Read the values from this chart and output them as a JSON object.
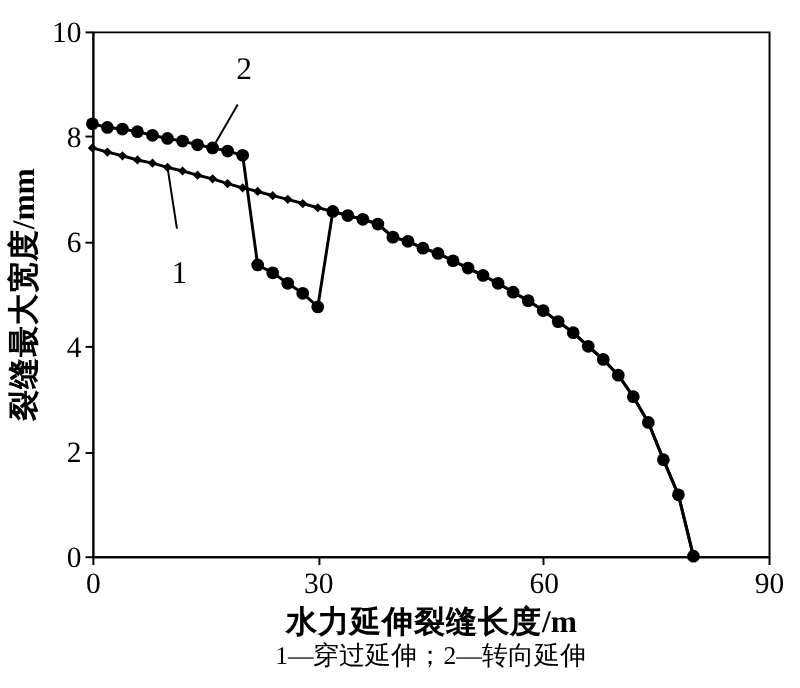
{
  "chart_data": {
    "type": "line",
    "xlabel": "水力延伸裂缝长度/m",
    "ylabel": "裂缝最大宽度/mm",
    "xlim": [
      0,
      90
    ],
    "xticks": [
      0,
      30,
      60,
      90
    ],
    "ylim": [
      0,
      10
    ],
    "yticks": [
      0,
      2,
      4,
      6,
      8,
      10
    ],
    "grid": false,
    "line_style": "solid",
    "series": [
      {
        "color": "#000000",
        "marker": "diamond",
        "x": [
          0,
          2,
          4,
          6,
          8,
          10,
          12,
          14,
          16,
          18,
          20,
          22,
          24,
          26,
          28,
          30,
          32,
          34,
          36,
          38,
          40,
          42,
          44,
          46,
          48,
          50,
          52,
          54,
          56,
          58,
          60,
          62,
          64,
          66,
          68,
          70,
          72,
          74,
          76,
          78,
          80
        ],
        "values": [
          7.78,
          7.7,
          7.63,
          7.55,
          7.49,
          7.41,
          7.34,
          7.26,
          7.19,
          7.1,
          7.02,
          6.95,
          6.87,
          6.8,
          6.72,
          6.64,
          6.57,
          6.49,
          6.42,
          6.33,
          6.08,
          6.0,
          5.87,
          5.77,
          5.63,
          5.49,
          5.35,
          5.2,
          5.03,
          4.87,
          4.68,
          4.47,
          4.26,
          4.0,
          3.75,
          3.45,
          3.04,
          2.55,
          1.84,
          1.17,
          0
        ]
      },
      {
        "color": "#000000",
        "marker": "circle",
        "x": [
          0,
          2,
          4,
          6,
          8,
          10,
          12,
          14,
          16,
          18,
          20,
          22,
          24,
          26,
          28,
          30,
          32,
          34,
          36,
          38,
          40,
          42,
          44,
          46,
          48,
          50,
          52,
          54,
          56,
          58,
          60,
          62,
          64,
          66,
          68,
          70,
          72,
          74,
          76,
          78,
          80
        ],
        "values": [
          8.24,
          8.17,
          8.14,
          8.09,
          8.02,
          7.96,
          7.91,
          7.84,
          7.78,
          7.72,
          7.64,
          5.55,
          5.4,
          5.2,
          5.01,
          4.75,
          6.57,
          6.49,
          6.42,
          6.33,
          6.08,
          6.0,
          5.87,
          5.77,
          5.63,
          5.49,
          5.35,
          5.2,
          5.03,
          4.87,
          4.68,
          4.47,
          4.26,
          4.0,
          3.75,
          3.45,
          3.04,
          2.55,
          1.84,
          1.17,
          0
        ]
      }
    ],
    "annotations": [
      {
        "text": "2",
        "x": 16,
        "y": 7.78
      },
      {
        "text": "1",
        "x": 10,
        "y": 7.41
      },
      "1—穿过延伸；2—转向延伸"
    ]
  }
}
